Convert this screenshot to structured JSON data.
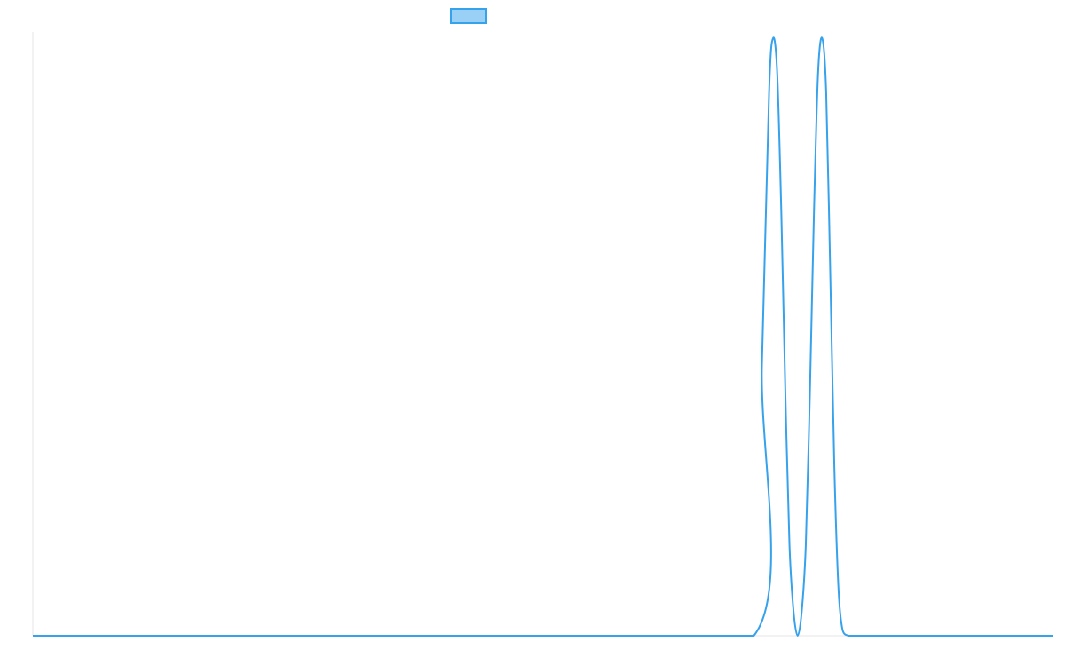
{
  "colors": {
    "series": "#36a2eb",
    "series_fill": "#9ad0f5",
    "grid": "#e5e5e5",
    "background": "#ffffff"
  },
  "chart_data": {
    "type": "line",
    "title": "",
    "xlabel": "",
    "ylabel": "",
    "grid": false,
    "legend": {
      "position": "top",
      "entries": [
        {
          "label": "",
          "color": "#36a2eb"
        }
      ]
    },
    "xlim": [
      0,
      100
    ],
    "ylim": [
      0,
      1
    ],
    "series": [
      {
        "x": [
          0,
          50,
          70.7,
          71.5,
          72.2,
          72.6,
          73.0,
          73.4,
          73.8,
          74.2,
          74.6,
          75.0,
          75.4,
          75.8,
          76.2,
          76.6,
          77.0,
          77.4,
          77.8,
          78.2,
          78.6,
          79.0,
          79.4,
          80.0,
          80.7,
          85,
          100
        ],
        "y": [
          0,
          0,
          0,
          0.45,
          0.9,
          0.99,
          0.93,
          0.7,
          0.4,
          0.15,
          0.04,
          0.0,
          0.04,
          0.15,
          0.4,
          0.7,
          0.93,
          0.99,
          0.9,
          0.6,
          0.28,
          0.08,
          0.01,
          0,
          0,
          0,
          0
        ]
      }
    ]
  }
}
